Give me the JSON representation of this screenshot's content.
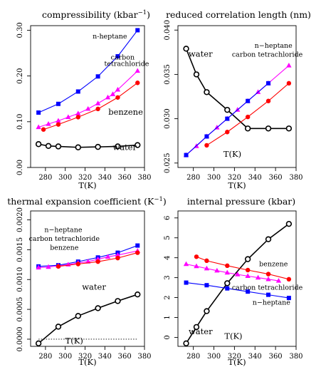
{
  "colors": {
    "water": "#000000",
    "benzene": "#ff0000",
    "carbon_tetrachloride": "#ff00ff",
    "n_heptane": "#0000ff"
  },
  "chart_data": [
    {
      "type": "line",
      "title": "compressibility",
      "title_unit": "(kbar",
      "title_unit_sup": "−1",
      "title_unit_end": ")",
      "xlabel": "T(K)",
      "xlim": [
        265,
        380
      ],
      "ylim": [
        0.0,
        0.31
      ],
      "x_ticks": [
        280,
        300,
        320,
        340,
        360,
        380
      ],
      "y_ticks": [
        0.0,
        0.1,
        0.2,
        0.3
      ],
      "y_tick_labels": [
        "0.00",
        "0.10",
        "0.20",
        "0.30"
      ],
      "series": [
        {
          "name": "n-heptane",
          "color_key": "n_heptane",
          "marker": "square",
          "x": [
            273,
            293,
            313,
            333,
            353,
            373
          ],
          "y": [
            0.12,
            0.139,
            0.166,
            0.199,
            0.243,
            0.3
          ]
        },
        {
          "name": "carbon tetrachloride",
          "color_key": "carbon_tetrachloride",
          "marker": "triangle",
          "x": [
            273,
            283,
            293,
            303,
            313,
            323,
            333,
            343,
            348,
            353,
            373
          ],
          "y": [
            0.088,
            0.095,
            0.102,
            0.11,
            0.118,
            0.128,
            0.14,
            0.153,
            0.16,
            0.17,
            0.211
          ]
        },
        {
          "name": "benzene",
          "color_key": "benzene",
          "marker": "circle",
          "x": [
            278,
            293,
            313,
            333,
            353,
            373
          ],
          "y": [
            0.083,
            0.094,
            0.11,
            0.128,
            0.153,
            0.185
          ]
        },
        {
          "name": "water",
          "color_key": "water",
          "marker": "open-circle",
          "x": [
            273,
            283,
            293,
            313,
            333,
            353,
            373
          ],
          "y": [
            0.051,
            0.047,
            0.046,
            0.044,
            0.045,
            0.046,
            0.049
          ]
        }
      ],
      "annotations": [
        {
          "text": "n-heptane",
          "x": 345,
          "y": 0.282,
          "cls": "ann"
        },
        {
          "text": "carbon",
          "x": 358,
          "y": 0.236,
          "cls": "ann"
        },
        {
          "text": "tetrachloride",
          "x": 362,
          "y": 0.222,
          "cls": "ann"
        },
        {
          "text": "benzene",
          "x": 361,
          "y": 0.115,
          "cls": "ann-big"
        },
        {
          "text": "water",
          "x": 360,
          "y": 0.038,
          "cls": "ann-big"
        }
      ]
    },
    {
      "type": "line",
      "title": "reduced correlation length",
      "title_unit": "(nm)",
      "xlabel": "T(K)",
      "xlim": [
        265,
        380
      ],
      "ylim": [
        0.0245,
        0.0405
      ],
      "x_ticks": [
        280,
        300,
        320,
        340,
        360,
        380
      ],
      "y_ticks": [
        0.025,
        0.03,
        0.035,
        0.04
      ],
      "y_tick_labels": [
        "0.025",
        "0.030",
        "0.035",
        "0.040"
      ],
      "series": [
        {
          "name": "water",
          "color_key": "water",
          "marker": "open-circle",
          "x": [
            273,
            283,
            293,
            313,
            333,
            353,
            373
          ],
          "y": [
            0.0379,
            0.035,
            0.033,
            0.031,
            0.0289,
            0.0289,
            0.0289
          ]
        },
        {
          "name": "carbon tetrachloride",
          "color_key": "carbon_tetrachloride",
          "marker": "triangle",
          "x": [
            273,
            283,
            293,
            303,
            313,
            323,
            333,
            343,
            353,
            373
          ],
          "y": [
            0.0259,
            0.0269,
            0.028,
            0.029,
            0.03,
            0.031,
            0.032,
            0.033,
            0.034,
            0.036
          ]
        },
        {
          "name": "n-heptane",
          "color_key": "n_heptane",
          "marker": "square",
          "x": [
            273,
            293,
            313,
            333,
            353
          ],
          "y": [
            0.0259,
            0.028,
            0.03,
            0.032,
            0.034
          ]
        },
        {
          "name": "benzene",
          "color_key": "benzene",
          "marker": "circle",
          "x": [
            293,
            313,
            333,
            353,
            373
          ],
          "y": [
            0.027,
            0.0285,
            0.0302,
            0.032,
            0.034
          ]
        }
      ],
      "annotations": [
        {
          "text": "water",
          "x": 287,
          "y": 0.037,
          "cls": "ann-big"
        },
        {
          "text": "n−heptane",
          "x": 358,
          "y": 0.038,
          "cls": "ann"
        },
        {
          "text": "carbon tetrachloride",
          "x": 352,
          "y": 0.037,
          "cls": "ann"
        },
        {
          "text": "T(K)",
          "x": 318,
          "y": 0.0257,
          "cls": "ann-big"
        }
      ]
    },
    {
      "type": "line",
      "title": "thermal expansion coefficient",
      "title_unit": "(K",
      "title_unit_sup": "−1",
      "title_unit_end": ")",
      "xlabel": "T(K)",
      "xlim": [
        265,
        380
      ],
      "ylim": [
        -0.00012,
        0.00215
      ],
      "x_ticks": [
        280,
        300,
        320,
        340,
        360,
        380
      ],
      "y_ticks": [
        0.0,
        0.0005,
        0.001,
        0.0015,
        0.002
      ],
      "y_tick_labels": [
        "0.0000",
        "0.0005",
        "0.0010",
        "0.0015",
        "0.0020"
      ],
      "series": [
        {
          "name": "n-heptane",
          "color_key": "n_heptane",
          "marker": "square",
          "x": [
            273,
            293,
            313,
            333,
            353,
            373
          ],
          "y": [
            0.00122,
            0.00124,
            0.0013,
            0.00137,
            0.00145,
            0.00157
          ]
        },
        {
          "name": "carbon tetrachloride",
          "color_key": "carbon_tetrachloride",
          "marker": "triangle",
          "x": [
            273,
            283,
            293,
            303,
            313,
            323,
            333,
            343,
            353,
            373
          ],
          "y": [
            0.0012,
            0.00121,
            0.00123,
            0.00125,
            0.00128,
            0.0013,
            0.00134,
            0.00138,
            0.00141,
            0.00148
          ]
        },
        {
          "name": "benzene",
          "color_key": "benzene",
          "marker": "circle",
          "x": [
            293,
            313,
            333,
            353,
            373
          ],
          "y": [
            0.00122,
            0.00126,
            0.0013,
            0.00136,
            0.00145
          ]
        },
        {
          "name": "water",
          "color_key": "water",
          "marker": "open-circle",
          "x": [
            273,
            293,
            313,
            333,
            353,
            373
          ],
          "y": [
            -7e-05,
            0.00021,
            0.00039,
            0.00052,
            0.00064,
            0.00075
          ]
        }
      ],
      "reference_line": {
        "y": 0.0,
        "x_from": 273,
        "x_to": 373
      },
      "annotations": [
        {
          "text": "n−heptane",
          "x": 298,
          "y": 0.0018,
          "cls": "ann"
        },
        {
          "text": "carbon tetrachloride",
          "x": 299,
          "y": 0.00165,
          "cls": "ann"
        },
        {
          "text": "benzene",
          "x": 299,
          "y": 0.0015,
          "cls": "ann"
        },
        {
          "text": "water",
          "x": 329,
          "y": 0.00083,
          "cls": "ann-big"
        },
        {
          "text": "T(K)",
          "x": 309,
          "y": -7e-05,
          "cls": "ann-big"
        }
      ]
    },
    {
      "type": "line",
      "title": "internal pressure",
      "title_unit": "(kbar)",
      "xlabel": "T(K)",
      "xlim": [
        265,
        380
      ],
      "ylim": [
        -0.45,
        6.35
      ],
      "x_ticks": [
        280,
        300,
        320,
        340,
        360,
        380
      ],
      "y_ticks": [
        0,
        1,
        2,
        3,
        4,
        5,
        6
      ],
      "y_tick_labels": [
        "0",
        "1",
        "2",
        "3",
        "4",
        "5",
        "6"
      ],
      "series": [
        {
          "name": "water",
          "color_key": "water",
          "marker": "open-circle",
          "x": [
            273,
            283,
            293,
            313,
            333,
            353,
            373
          ],
          "y": [
            -0.3,
            0.52,
            1.32,
            2.72,
            3.93,
            4.93,
            5.7
          ]
        },
        {
          "name": "benzene",
          "color_key": "benzene",
          "marker": "circle",
          "x": [
            283,
            293,
            313,
            333,
            353,
            373
          ],
          "y": [
            4.05,
            3.85,
            3.6,
            3.38,
            3.18,
            2.92
          ]
        },
        {
          "name": "carbon tetrachloride",
          "color_key": "carbon_tetrachloride",
          "marker": "triangle",
          "x": [
            273,
            283,
            293,
            303,
            313,
            323,
            333,
            343,
            353,
            363
          ],
          "y": [
            3.68,
            3.57,
            3.46,
            3.35,
            3.25,
            3.16,
            3.08,
            3.0,
            2.92,
            2.84
          ]
        },
        {
          "name": "n-heptane",
          "color_key": "n_heptane",
          "marker": "square",
          "x": [
            273,
            293,
            313,
            333,
            353,
            373
          ],
          "y": [
            2.75,
            2.62,
            2.46,
            2.3,
            2.14,
            1.98
          ]
        }
      ],
      "annotations": [
        {
          "text": "benzene",
          "x": 358,
          "y": 3.58,
          "cls": "ann"
        },
        {
          "text": "carbon tetrachloride",
          "x": 352,
          "y": 2.4,
          "cls": "ann"
        },
        {
          "text": "n−heptane",
          "x": 356,
          "y": 1.65,
          "cls": "ann"
        },
        {
          "text": "water",
          "x": 287,
          "y": 0.15,
          "cls": "ann-big"
        },
        {
          "text": "T(K)",
          "x": 319,
          "y": -0.08,
          "cls": "ann-big"
        }
      ]
    }
  ]
}
